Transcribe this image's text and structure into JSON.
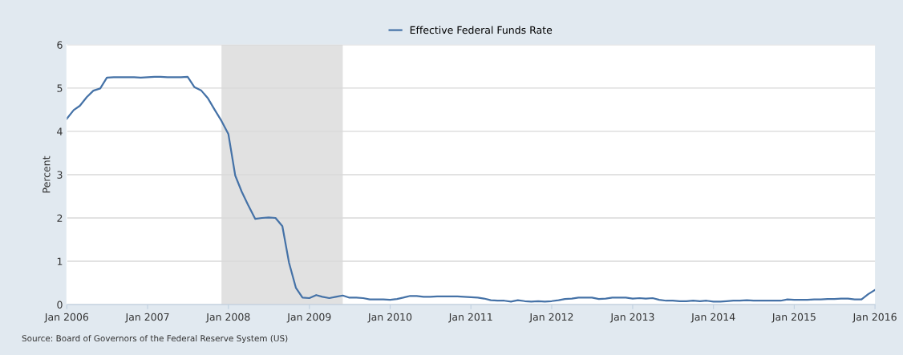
{
  "chart_data": {
    "type": "line",
    "series": [
      {
        "name": "Effective Federal Funds Rate",
        "color": "#4572a7",
        "x": [
          "2006-01",
          "2006-02",
          "2006-03",
          "2006-04",
          "2006-05",
          "2006-06",
          "2006-07",
          "2006-08",
          "2006-09",
          "2006-10",
          "2006-11",
          "2006-12",
          "2007-01",
          "2007-02",
          "2007-03",
          "2007-04",
          "2007-05",
          "2007-06",
          "2007-07",
          "2007-08",
          "2007-09",
          "2007-10",
          "2007-11",
          "2007-12",
          "2008-01",
          "2008-02",
          "2008-03",
          "2008-04",
          "2008-05",
          "2008-06",
          "2008-07",
          "2008-08",
          "2008-09",
          "2008-10",
          "2008-11",
          "2008-12",
          "2009-01",
          "2009-02",
          "2009-03",
          "2009-04",
          "2009-05",
          "2009-06",
          "2009-07",
          "2009-08",
          "2009-09",
          "2009-10",
          "2009-11",
          "2009-12",
          "2010-01",
          "2010-02",
          "2010-03",
          "2010-04",
          "2010-05",
          "2010-06",
          "2010-07",
          "2010-08",
          "2010-09",
          "2010-10",
          "2010-11",
          "2010-12",
          "2011-01",
          "2011-02",
          "2011-03",
          "2011-04",
          "2011-05",
          "2011-06",
          "2011-07",
          "2011-08",
          "2011-09",
          "2011-10",
          "2011-11",
          "2011-12",
          "2012-01",
          "2012-02",
          "2012-03",
          "2012-04",
          "2012-05",
          "2012-06",
          "2012-07",
          "2012-08",
          "2012-09",
          "2012-10",
          "2012-11",
          "2012-12",
          "2013-01",
          "2013-02",
          "2013-03",
          "2013-04",
          "2013-05",
          "2013-06",
          "2013-07",
          "2013-08",
          "2013-09",
          "2013-10",
          "2013-11",
          "2013-12",
          "2014-01",
          "2014-02",
          "2014-03",
          "2014-04",
          "2014-05",
          "2014-06",
          "2014-07",
          "2014-08",
          "2014-09",
          "2014-10",
          "2014-11",
          "2014-12",
          "2015-01",
          "2015-02",
          "2015-03",
          "2015-04",
          "2015-05",
          "2015-06",
          "2015-07",
          "2015-08",
          "2015-09",
          "2015-10",
          "2015-11",
          "2015-12",
          "2016-01"
        ],
        "values": [
          4.29,
          4.49,
          4.59,
          4.79,
          4.94,
          4.99,
          5.24,
          5.25,
          5.25,
          5.25,
          5.25,
          5.24,
          5.25,
          5.26,
          5.26,
          5.25,
          5.25,
          5.25,
          5.26,
          5.02,
          4.94,
          4.76,
          4.49,
          4.24,
          3.94,
          2.98,
          2.61,
          2.28,
          1.98,
          2.0,
          2.01,
          2.0,
          1.81,
          0.97,
          0.39,
          0.16,
          0.15,
          0.22,
          0.18,
          0.15,
          0.18,
          0.21,
          0.16,
          0.16,
          0.15,
          0.12,
          0.12,
          0.12,
          0.11,
          0.13,
          0.16,
          0.2,
          0.2,
          0.18,
          0.18,
          0.19,
          0.19,
          0.19,
          0.19,
          0.18,
          0.17,
          0.16,
          0.14,
          0.1,
          0.09,
          0.09,
          0.07,
          0.1,
          0.08,
          0.07,
          0.08,
          0.07,
          0.08,
          0.1,
          0.13,
          0.14,
          0.16,
          0.16,
          0.16,
          0.13,
          0.14,
          0.16,
          0.16,
          0.16,
          0.14,
          0.15,
          0.14,
          0.15,
          0.11,
          0.09,
          0.09,
          0.08,
          0.08,
          0.09,
          0.08,
          0.09,
          0.07,
          0.07,
          0.08,
          0.09,
          0.09,
          0.1,
          0.09,
          0.09,
          0.09,
          0.09,
          0.09,
          0.12,
          0.11,
          0.11,
          0.11,
          0.12,
          0.12,
          0.13,
          0.13,
          0.14,
          0.14,
          0.12,
          0.12,
          0.24,
          0.34
        ]
      }
    ],
    "ylabel": "Percent",
    "xlim": [
      "2006-01",
      "2016-01"
    ],
    "xticks": [
      {
        "value": "2006-01",
        "label": "Jan 2006"
      },
      {
        "value": "2007-01",
        "label": "Jan 2007"
      },
      {
        "value": "2008-01",
        "label": "Jan 2008"
      },
      {
        "value": "2009-01",
        "label": "Jan 2009"
      },
      {
        "value": "2010-01",
        "label": "Jan 2010"
      },
      {
        "value": "2011-01",
        "label": "Jan 2011"
      },
      {
        "value": "2012-01",
        "label": "Jan 2012"
      },
      {
        "value": "2013-01",
        "label": "Jan 2013"
      },
      {
        "value": "2014-01",
        "label": "Jan 2014"
      },
      {
        "value": "2015-01",
        "label": "Jan 2015"
      },
      {
        "value": "2016-01",
        "label": "Jan 2016"
      }
    ],
    "ylim": [
      0,
      6
    ],
    "yticks": [
      0,
      1,
      2,
      3,
      4,
      5,
      6
    ],
    "bands": [
      {
        "axis": "x",
        "from": "2007-12",
        "to": "2009-06",
        "color": "#e1e1e1"
      }
    ],
    "grid": "y",
    "legend": "top",
    "annotations": [
      "Source: Board of Governors of the Federal Reserve System (US)"
    ]
  }
}
